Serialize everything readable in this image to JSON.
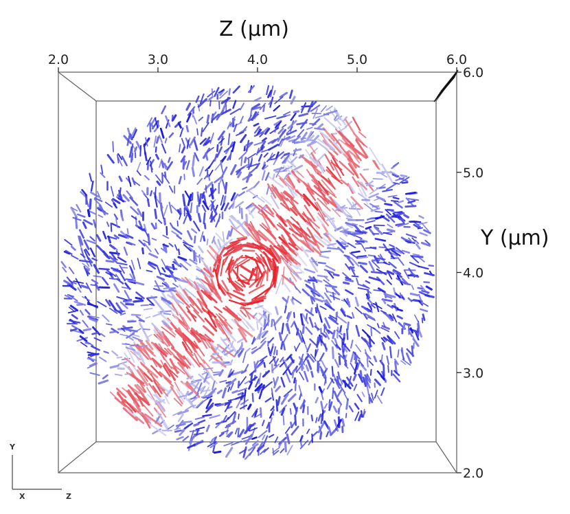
{
  "chart_data": {
    "type": "scatter",
    "title": "",
    "xlabel": "Z (μm)",
    "ylabel": "Y (μm)",
    "xlim": [
      2.0,
      6.0
    ],
    "ylim": [
      2.0,
      6.0
    ],
    "x_ticks": [
      "2.0",
      "3.0",
      "4.0",
      "5.0",
      "6.0"
    ],
    "y_ticks": [
      "2.0",
      "3.0",
      "4.0",
      "5.0",
      "6.0"
    ],
    "grid": false,
    "legend": "none",
    "domain": {
      "center_z": 3.9,
      "center_y": 4.0,
      "radius": 1.85
    },
    "orientation_axes": {
      "vertical": "Y",
      "horizontal_left": "X",
      "horizontal_right": "Z"
    },
    "colors": {
      "low": "#3a3ae0",
      "mid": "#e8e8f4",
      "high": "#e8202a",
      "box": "#555555"
    }
  }
}
